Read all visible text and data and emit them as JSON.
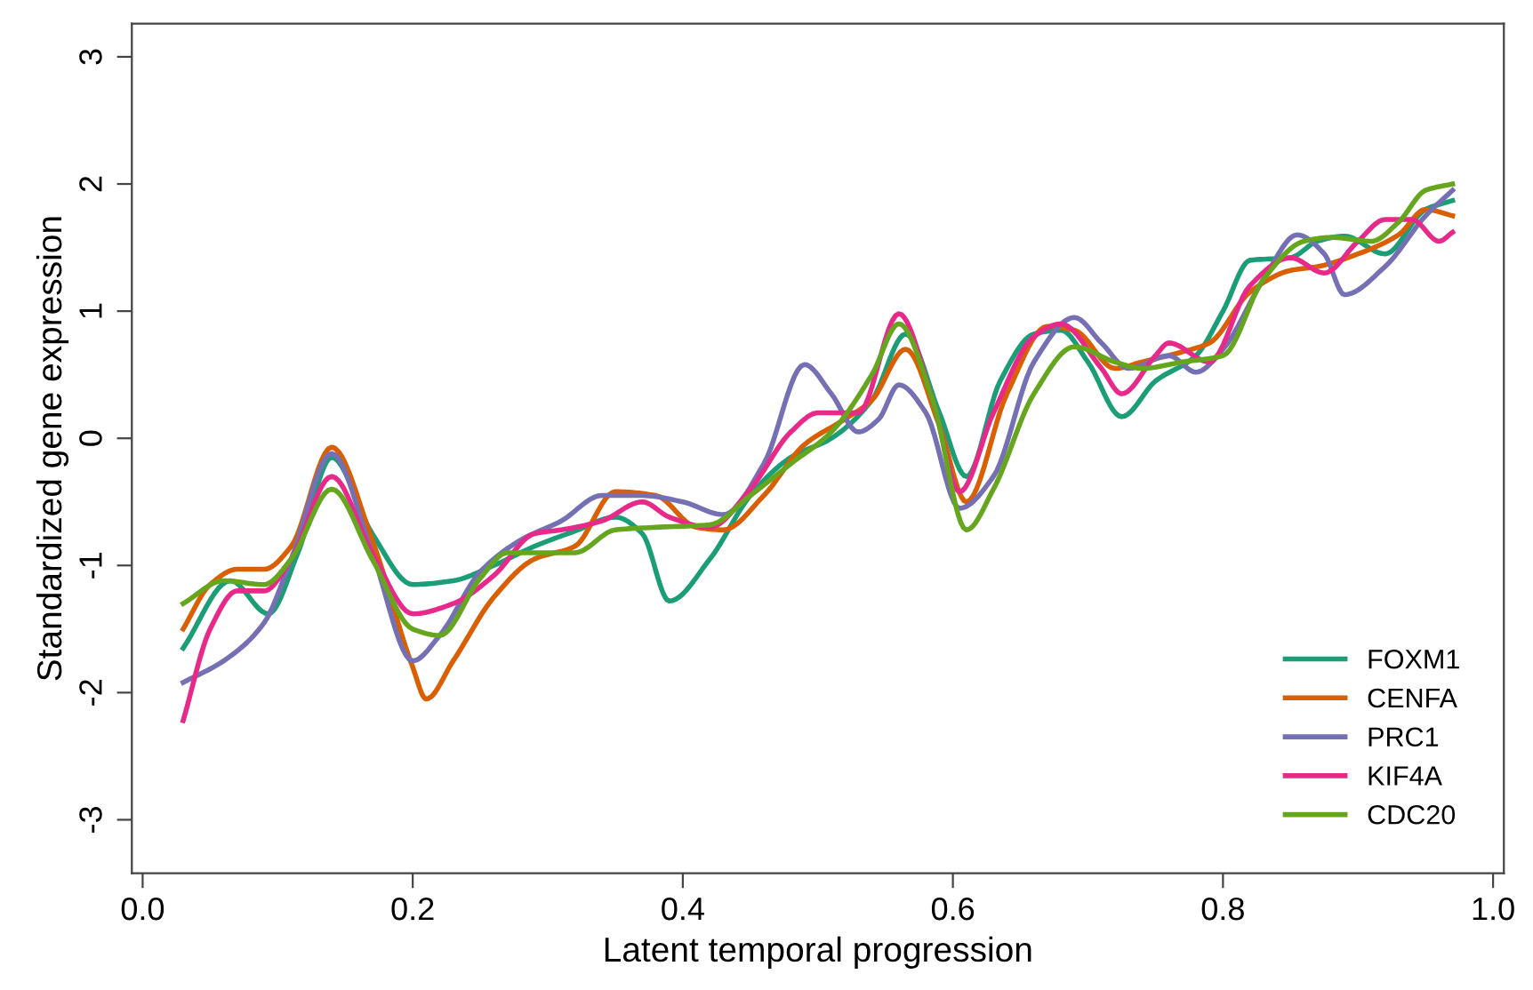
{
  "chart_data": {
    "type": "line",
    "xlabel": "Latent temporal progression",
    "ylabel": "Standardized gene expression",
    "xlim": [
      -0.008,
      1.008
    ],
    "ylim": [
      -3.42,
      3.26
    ],
    "xticks": [
      {
        "value": 0,
        "label": "0.0"
      },
      {
        "value": 0.2,
        "label": "0.2"
      },
      {
        "value": 0.4,
        "label": "0.4"
      },
      {
        "value": 0.6,
        "label": "0.6"
      },
      {
        "value": 0.8,
        "label": "0.8"
      },
      {
        "value": 1,
        "label": "1.0"
      }
    ],
    "yticks": [
      -3,
      -2,
      -1,
      0,
      1,
      2,
      3
    ],
    "grid": false,
    "legend": "bottom right",
    "line_style": "solid",
    "marker": "none",
    "series": [
      {
        "name": "FOXM1",
        "color": "#1b9e77",
        "x": [
          0.03,
          0.065,
          0.093,
          0.115,
          0.14,
          0.17,
          0.2,
          0.23,
          0.26,
          0.29,
          0.32,
          0.35,
          0.37,
          0.39,
          0.42,
          0.45,
          0.48,
          0.51,
          0.54,
          0.565,
          0.59,
          0.61,
          0.635,
          0.66,
          0.68,
          0.7,
          0.725,
          0.75,
          0.78,
          0.8,
          0.82,
          0.85,
          0.87,
          0.89,
          0.92,
          0.95,
          0.97
        ],
        "values": [
          -1.65,
          -1.12,
          -1.38,
          -0.9,
          -0.15,
          -0.75,
          -1.15,
          -1.12,
          -1.0,
          -0.85,
          -0.73,
          -0.62,
          -0.75,
          -1.28,
          -0.95,
          -0.45,
          -0.15,
          0.0,
          0.3,
          0.82,
          0.2,
          -0.3,
          0.45,
          0.82,
          0.85,
          0.6,
          0.17,
          0.45,
          0.65,
          1.0,
          1.4,
          1.42,
          1.55,
          1.59,
          1.45,
          1.8,
          1.87
        ]
      },
      {
        "name": "CENFA",
        "color": "#d95f02",
        "x": [
          0.03,
          0.05,
          0.07,
          0.09,
          0.11,
          0.14,
          0.17,
          0.2,
          0.21,
          0.23,
          0.26,
          0.29,
          0.32,
          0.35,
          0.38,
          0.41,
          0.43,
          0.46,
          0.49,
          0.52,
          0.54,
          0.565,
          0.59,
          0.61,
          0.64,
          0.67,
          0.69,
          0.72,
          0.74,
          0.77,
          0.79,
          0.82,
          0.85,
          0.87,
          0.9,
          0.93,
          0.95,
          0.97
        ],
        "values": [
          -1.5,
          -1.15,
          -1.03,
          -1.03,
          -0.85,
          -0.07,
          -0.8,
          -1.8,
          -2.05,
          -1.75,
          -1.25,
          -0.95,
          -0.85,
          -0.42,
          -0.45,
          -0.7,
          -0.72,
          -0.45,
          -0.05,
          0.15,
          0.3,
          0.7,
          0.1,
          -0.5,
          0.35,
          0.88,
          0.85,
          0.55,
          0.6,
          0.68,
          0.75,
          1.15,
          1.32,
          1.35,
          1.45,
          1.6,
          1.8,
          1.75
        ]
      },
      {
        "name": "PRC1",
        "color": "#7570b3",
        "x": [
          0.03,
          0.06,
          0.09,
          0.11,
          0.14,
          0.17,
          0.2,
          0.22,
          0.25,
          0.28,
          0.31,
          0.34,
          0.37,
          0.4,
          0.43,
          0.46,
          0.49,
          0.51,
          0.53,
          0.545,
          0.56,
          0.58,
          0.605,
          0.63,
          0.66,
          0.69,
          0.71,
          0.73,
          0.76,
          0.78,
          0.8,
          0.83,
          0.855,
          0.875,
          0.89,
          0.92,
          0.95,
          0.97
        ],
        "values": [
          -1.92,
          -1.75,
          -1.45,
          -0.95,
          -0.12,
          -0.9,
          -1.75,
          -1.55,
          -1.05,
          -0.8,
          -0.65,
          -0.45,
          -0.45,
          -0.5,
          -0.6,
          -0.2,
          0.58,
          0.35,
          0.05,
          0.15,
          0.42,
          0.2,
          -0.55,
          -0.3,
          0.6,
          0.95,
          0.75,
          0.55,
          0.65,
          0.52,
          0.7,
          1.25,
          1.6,
          1.45,
          1.13,
          1.35,
          1.75,
          1.95
        ]
      },
      {
        "name": "KIF4A",
        "color": "#e7298a",
        "x": [
          0.03,
          0.05,
          0.07,
          0.09,
          0.11,
          0.14,
          0.17,
          0.2,
          0.23,
          0.26,
          0.29,
          0.31,
          0.34,
          0.37,
          0.39,
          0.42,
          0.45,
          0.48,
          0.5,
          0.53,
          0.56,
          0.585,
          0.605,
          0.63,
          0.66,
          0.68,
          0.71,
          0.725,
          0.75,
          0.76,
          0.79,
          0.82,
          0.85,
          0.875,
          0.9,
          0.92,
          0.94,
          0.96,
          0.97
        ],
        "values": [
          -2.22,
          -1.5,
          -1.2,
          -1.2,
          -0.95,
          -0.3,
          -0.9,
          -1.38,
          -1.3,
          -1.08,
          -0.75,
          -0.72,
          -0.65,
          -0.5,
          -0.62,
          -0.7,
          -0.4,
          0.05,
          0.2,
          0.2,
          0.98,
          0.3,
          -0.42,
          0.2,
          0.8,
          0.9,
          0.55,
          0.35,
          0.65,
          0.75,
          0.6,
          1.2,
          1.42,
          1.3,
          1.55,
          1.72,
          1.72,
          1.55,
          1.62
        ]
      },
      {
        "name": "CDC20",
        "color": "#66a61e",
        "x": [
          0.03,
          0.06,
          0.09,
          0.11,
          0.14,
          0.17,
          0.2,
          0.22,
          0.25,
          0.27,
          0.3,
          0.32,
          0.35,
          0.38,
          0.42,
          0.45,
          0.48,
          0.51,
          0.54,
          0.56,
          0.585,
          0.61,
          0.63,
          0.66,
          0.69,
          0.72,
          0.74,
          0.77,
          0.8,
          0.83,
          0.86,
          0.88,
          0.91,
          0.93,
          0.95,
          0.97
        ],
        "values": [
          -1.3,
          -1.12,
          -1.15,
          -0.95,
          -0.4,
          -0.95,
          -1.5,
          -1.55,
          -1.1,
          -0.9,
          -0.9,
          -0.9,
          -0.72,
          -0.7,
          -0.68,
          -0.45,
          -0.2,
          0.05,
          0.5,
          0.9,
          0.3,
          -0.72,
          -0.4,
          0.35,
          0.72,
          0.6,
          0.55,
          0.6,
          0.65,
          1.25,
          1.55,
          1.58,
          1.55,
          1.7,
          1.95,
          2.0
        ]
      }
    ]
  }
}
